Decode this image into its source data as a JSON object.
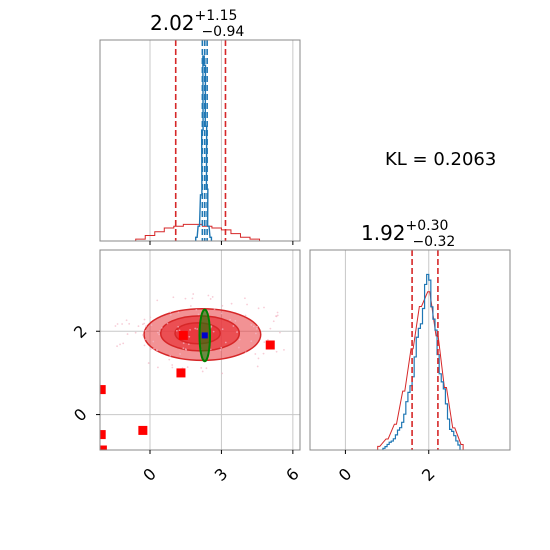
{
  "chart_data": {
    "type": "corner",
    "grid": true,
    "annotation": "KL = 0.2063",
    "colors": {
      "prior": "#d62728",
      "posterior": "#1f77b4",
      "fit": "#008000",
      "marker": "#ff0000",
      "contour_fill": "#e8383d",
      "grid": "#c8c8c8"
    },
    "params": [
      {
        "title_value": "2.02",
        "title_plus": "+1.15",
        "title_minus": "−0.94",
        "range": [
          -2.1,
          6.3
        ],
        "ticks": [
          0,
          3,
          6
        ],
        "tick_labels": [
          "0",
          "3",
          "6"
        ],
        "prior_quantiles": [
          1.08,
          2.02,
          3.17
        ],
        "posterior_quantiles": [
          2.2,
          2.3,
          2.4
        ]
      },
      {
        "title_value": "1.92",
        "title_plus": "+0.30",
        "title_minus": "−0.32",
        "range": [
          -0.85,
          3.95
        ],
        "ticks": [
          0,
          2
        ],
        "tick_labels": [
          "0",
          "2"
        ],
        "prior_quantiles": [
          1.6,
          1.92,
          2.22
        ],
        "posterior_quantiles": []
      }
    ],
    "hist_x_prior": {
      "x": [
        -0.4,
        0.0,
        0.4,
        0.8,
        1.2,
        1.6,
        2.0,
        2.4,
        2.8,
        3.2,
        3.6,
        4.0,
        4.4
      ],
      "counts": [
        0.01,
        0.03,
        0.05,
        0.07,
        0.08,
        0.09,
        0.09,
        0.08,
        0.07,
        0.06,
        0.04,
        0.02,
        0.01
      ]
    },
    "hist_x_posterior": {
      "x": [
        1.95,
        2.05,
        2.15,
        2.2,
        2.25,
        2.3,
        2.35,
        2.4,
        2.45,
        2.55
      ],
      "counts": [
        0.02,
        0.08,
        0.25,
        0.6,
        1.0,
        0.95,
        0.62,
        0.28,
        0.08,
        0.02
      ]
    },
    "hist_y_prior": {
      "x": [
        0.8,
        1.0,
        1.2,
        1.4,
        1.6,
        1.8,
        2.0,
        2.2,
        2.4,
        2.6,
        2.8
      ],
      "counts": [
        0.02,
        0.06,
        0.14,
        0.32,
        0.55,
        0.78,
        0.86,
        0.62,
        0.34,
        0.12,
        0.03
      ]
    },
    "hist_y_posterior": {
      "x": [
        0.9,
        1.1,
        1.3,
        1.5,
        1.7,
        1.8,
        1.9,
        2.0,
        2.1,
        2.3,
        2.5,
        2.7
      ],
      "counts": [
        0.01,
        0.05,
        0.12,
        0.3,
        0.58,
        0.76,
        0.86,
        1.0,
        0.7,
        0.38,
        0.12,
        0.03
      ]
    },
    "joint_contours": [
      {
        "center": [
          2.2,
          1.92
        ],
        "rx": 2.45,
        "ry": 0.62,
        "opacity": 0.55
      },
      {
        "center": [
          2.1,
          1.95
        ],
        "rx": 1.65,
        "ry": 0.42,
        "opacity": 0.75
      },
      {
        "center": [
          2.0,
          1.95
        ],
        "rx": 0.95,
        "ry": 0.25,
        "opacity": 0.95
      }
    ],
    "fit_ellipse": {
      "center": [
        2.3,
        1.9
      ],
      "rx": 0.22,
      "ry": 0.62
    },
    "markers": [
      {
        "x": 1.4,
        "y": 1.9
      },
      {
        "x": 1.3,
        "y": 1.0
      },
      {
        "x": 5.05,
        "y": 1.67
      },
      {
        "x": -0.3,
        "y": -0.38
      },
      {
        "x": -2.05,
        "y": 0.6
      },
      {
        "x": -2.05,
        "y": -0.48
      },
      {
        "x": -2.0,
        "y": -0.85
      }
    ],
    "center_point": {
      "x": 2.3,
      "y": 1.9
    }
  }
}
